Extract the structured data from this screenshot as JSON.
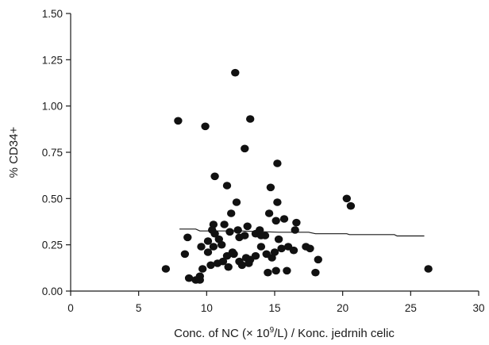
{
  "chart_data": {
    "type": "scatter",
    "title": "",
    "xlabel_prefix": "Conc. of NC (× 10",
    "xlabel_sup": "9",
    "xlabel_suffix": "/L) / Konc. jedrnih celic",
    "ylabel": "% CD34+",
    "xlim": [
      0,
      30
    ],
    "ylim": [
      0,
      1.5
    ],
    "x_ticks": [
      0,
      5,
      10,
      15,
      20,
      25,
      30
    ],
    "y_ticks": [
      "0.00",
      "0.25",
      "0.50",
      "0.75",
      "1.00",
      "1.25",
      "1.50"
    ],
    "grid": false,
    "legend": "none",
    "point_color": "#111111",
    "points": [
      [
        7.0,
        0.12
      ],
      [
        7.9,
        0.92
      ],
      [
        9.9,
        0.89
      ],
      [
        12.1,
        1.18
      ],
      [
        13.2,
        0.93
      ],
      [
        12.8,
        0.77
      ],
      [
        10.6,
        0.62
      ],
      [
        15.2,
        0.69
      ],
      [
        11.5,
        0.57
      ],
      [
        14.7,
        0.56
      ],
      [
        12.2,
        0.48
      ],
      [
        15.2,
        0.48
      ],
      [
        11.8,
        0.42
      ],
      [
        14.6,
        0.42
      ],
      [
        15.1,
        0.38
      ],
      [
        15.7,
        0.39
      ],
      [
        20.3,
        0.5
      ],
      [
        20.6,
        0.46
      ],
      [
        10.5,
        0.36
      ],
      [
        11.3,
        0.36
      ],
      [
        12.3,
        0.33
      ],
      [
        13.0,
        0.35
      ],
      [
        14.3,
        0.3
      ],
      [
        13.6,
        0.31
      ],
      [
        16.6,
        0.37
      ],
      [
        8.6,
        0.29
      ],
      [
        10.1,
        0.27
      ],
      [
        10.6,
        0.31
      ],
      [
        10.9,
        0.28
      ],
      [
        11.7,
        0.32
      ],
      [
        12.4,
        0.29
      ],
      [
        12.8,
        0.3
      ],
      [
        14.0,
        0.3
      ],
      [
        15.3,
        0.28
      ],
      [
        16.5,
        0.33
      ],
      [
        16.0,
        0.24
      ],
      [
        17.3,
        0.24
      ],
      [
        8.4,
        0.2
      ],
      [
        9.6,
        0.24
      ],
      [
        10.1,
        0.21
      ],
      [
        10.5,
        0.24
      ],
      [
        11.5,
        0.19
      ],
      [
        11.9,
        0.21
      ],
      [
        12.4,
        0.16
      ],
      [
        12.9,
        0.18
      ],
      [
        13.2,
        0.17
      ],
      [
        13.6,
        0.19
      ],
      [
        14.0,
        0.24
      ],
      [
        14.4,
        0.2
      ],
      [
        15.0,
        0.21
      ],
      [
        15.5,
        0.23
      ],
      [
        16.4,
        0.22
      ],
      [
        17.6,
        0.23
      ],
      [
        18.2,
        0.17
      ],
      [
        10.3,
        0.14
      ],
      [
        10.8,
        0.15
      ],
      [
        11.2,
        0.16
      ],
      [
        11.6,
        0.13
      ],
      [
        12.6,
        0.14
      ],
      [
        13.1,
        0.15
      ],
      [
        8.7,
        0.07
      ],
      [
        9.2,
        0.06
      ],
      [
        9.5,
        0.08
      ],
      [
        9.7,
        0.12
      ],
      [
        9.5,
        0.06
      ],
      [
        14.5,
        0.1
      ],
      [
        15.1,
        0.11
      ],
      [
        15.9,
        0.11
      ],
      [
        18.0,
        0.1
      ],
      [
        26.3,
        0.12
      ],
      [
        10.4,
        0.33
      ],
      [
        11.1,
        0.25
      ],
      [
        13.9,
        0.33
      ],
      [
        14.8,
        0.18
      ],
      [
        12.0,
        0.2
      ]
    ],
    "trend": [
      [
        8.0,
        0.335
      ],
      [
        9.2,
        0.335
      ],
      [
        9.5,
        0.325
      ],
      [
        12.5,
        0.325
      ],
      [
        15.3,
        0.318
      ],
      [
        17.5,
        0.318
      ],
      [
        18.0,
        0.31
      ],
      [
        20.3,
        0.31
      ],
      [
        20.5,
        0.305
      ],
      [
        23.8,
        0.305
      ],
      [
        24.0,
        0.298
      ],
      [
        26.0,
        0.298
      ]
    ]
  }
}
